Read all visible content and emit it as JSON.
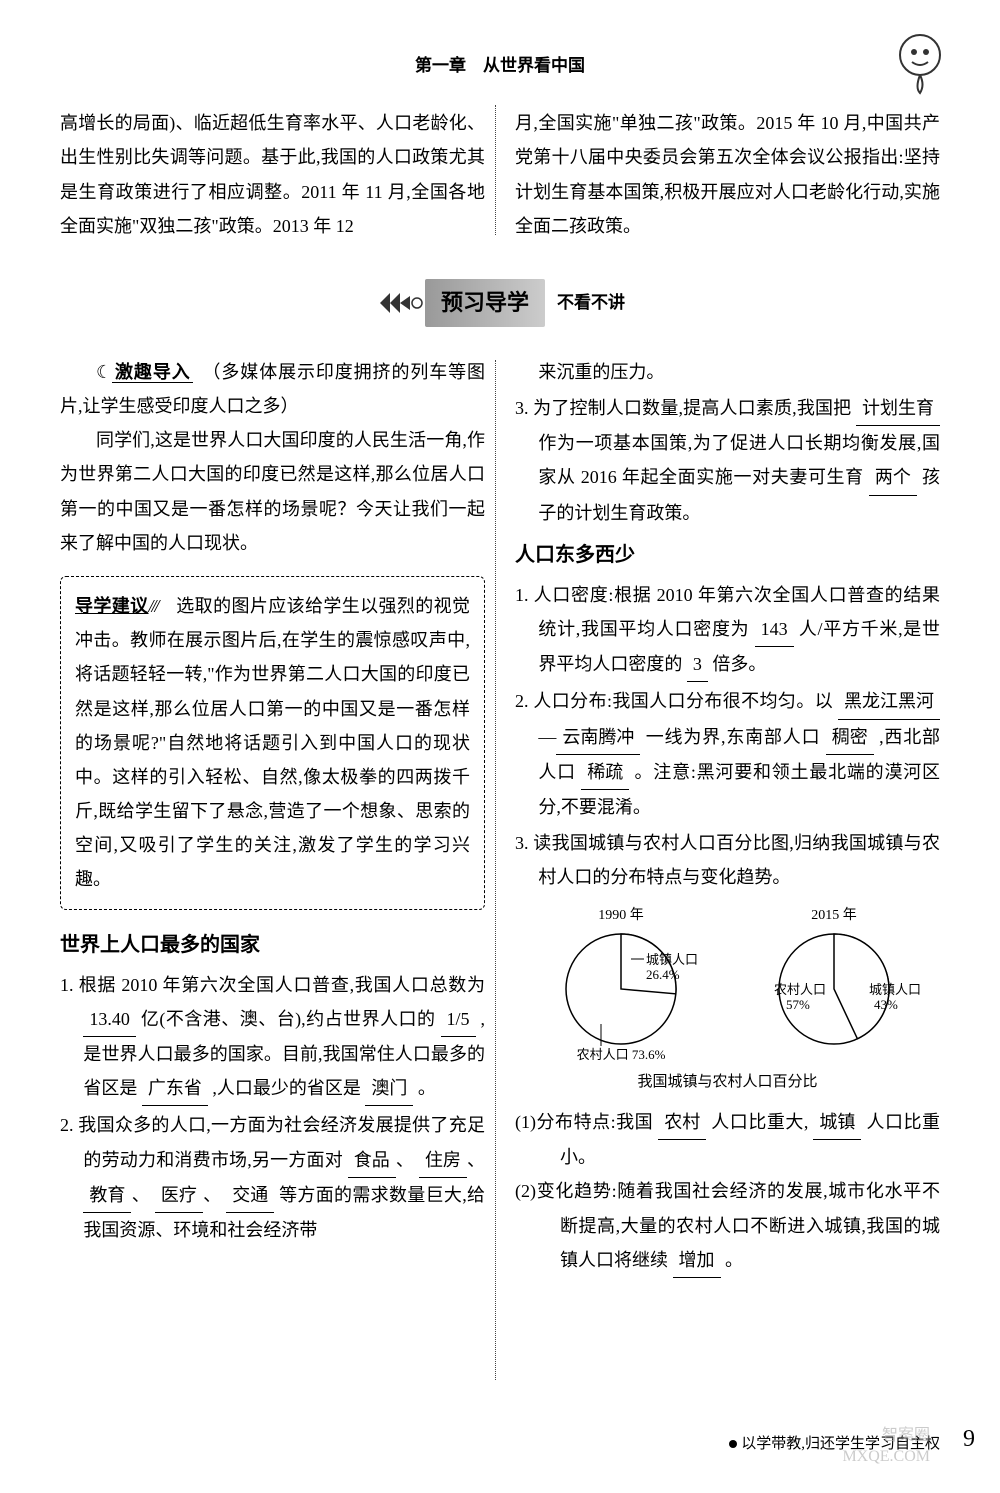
{
  "header": "第一章　从世界看中国",
  "intro_left": "高增长的局面)、临近超低生育率水平、人口老龄化、出生性别比失调等问题。基于此,我国的人口政策尤其是生育政策进行了相应调整。2011 年 11 月,全国各地全面实施\"双独二孩\"政策。2013 年 12",
  "intro_right": "月,全国实施\"单独二孩\"政策。2015 年 10 月,中国共产党第十八届中央委员会第五次全体会议公报指出:坚持计划生育基本国策,积极开展应对人口老龄化行动,实施全面二孩政策。",
  "banner": {
    "title": "预习导学",
    "sub": "不看不讲"
  },
  "left": {
    "jiqu_head": "激趣导入",
    "jiqu_note": "（多媒体展示印度拥挤的列车等图片,让学生感受印度人口之多）",
    "jiqu_p1": "同学们,这是世界人口大国印度的人民生活一角,作为世界第二人口大国的印度已然是这样,那么位居人口第一的中国又是一番怎样的场景呢？今天让我们一起来了解中国的人口现状。",
    "sug_head": "导学建议",
    "sug_body": "　选取的图片应该给学生以强烈的视觉冲击。教师在展示图片后,在学生的震惊感叹声中,将话题轻轻一转,\"作为世界第二人口大国的印度已然是这样,那么位居人口第一的中国又是一番怎样的场景呢?\"自然地将话题引入到中国人口的现状中。这样的引入轻松、自然,像太极拳的四两拨千斤,既给学生留下了悬念,营造了一个想象、思索的空间,又吸引了学生的关注,激发了学生的学习兴趣。",
    "sec1_title": "世界上人口最多的国家",
    "item1_pre": "1. 根据 2010 年第六次全国人口普查,我国人口总数为",
    "item1_b1": "13.40",
    "item1_mid1": "亿(不含港、澳、台),约占世界人口的",
    "item1_b2": "1/5",
    "item1_mid2": ",是世界人口最多的国家。目前,我国常住人口最多的省区是",
    "item1_b3": "广东省",
    "item1_mid3": ",人口最少的省区是",
    "item1_b4": "澳门",
    "item1_end": "。",
    "item2_pre": "2. 我国众多的人口,一方面为社会经济发展提供了充足的劳动力和消费市场,另一方面对",
    "item2_b1": "食品",
    "item2_c1": "、",
    "item2_b2": "住房",
    "item2_c2": "、",
    "item2_b3": "教育",
    "item2_c3": "、",
    "item2_b4": "医疗",
    "item2_c4": "、",
    "item2_b5": "交通",
    "item2_end": "等方面的需求数量巨大,给我国资源、环境和社会经济带"
  },
  "right": {
    "cont": "来沉重的压力。",
    "item3_pre": "3. 为了控制人口数量,提高人口素质,我国把",
    "item3_b1": "计划生育",
    "item3_mid1": "作为一项基本国策,为了促进人口长期均衡发展,国家从 2016 年起全面实施一对夫妻可生育",
    "item3_b2": "两个",
    "item3_end": "孩子的计划生育政策。",
    "sec2_title": "人口东多西少",
    "r1_pre": "1. 人口密度:根据 2010 年第六次全国人口普查的结果统计,我国平均人口密度为",
    "r1_b1": "143",
    "r1_mid": "人/平方千米,是世界平均人口密度的",
    "r1_b2": "3",
    "r1_end": "倍多。",
    "r2_pre": "2. 人口分布:我国人口分布很不均匀。以",
    "r2_b1": "黑龙江黑河",
    "r2_dash": "—",
    "r2_b2": "云南腾冲",
    "r2_mid1": "一线为界,东南部人口",
    "r2_b3": "稠密",
    "r2_mid2": ",西北部人口",
    "r2_b4": "稀疏",
    "r2_end": "。注意:黑河要和领土最北端的漠河区分,不要混淆。",
    "r3": "3. 读我国城镇与农村人口百分比图,归纳我国城镇与农村人口的分布特点与变化趋势。",
    "chart1990": {
      "year": "1990 年",
      "urban_label": "城镇人口",
      "urban_pct": "26.4%",
      "urban_value": 26.4,
      "rural_label": "农村人口 73.6%",
      "rural_value": 73.6,
      "urban_color": "#ffffff",
      "rural_color": "#ffffff",
      "stroke": "#000000"
    },
    "chart2015": {
      "year": "2015 年",
      "urban_label": "城镇人口",
      "urban_pct": "43%",
      "urban_value": 43,
      "rural_label": "农村人口",
      "rural_pct": "57%",
      "rural_value": 57,
      "urban_color": "#ffffff",
      "rural_color": "#ffffff",
      "stroke": "#000000"
    },
    "chart_caption": "我国城镇与农村人口百分比",
    "a1_pre": "(1)分布特点:我国",
    "a1_b1": "农村",
    "a1_mid": "人口比重大,",
    "a1_b2": "城镇",
    "a1_end": "人口比重小。",
    "a2_pre": "(2)变化趋势:随着我国社会经济的发展,城市化水平不断提高,大量的农村人口不断进入城镇,我国的城镇人口将继续",
    "a2_b1": "增加",
    "a2_end": "。"
  },
  "footer": "以学带教,归还学生学习自主权",
  "page": "9",
  "watermark1": "智案圈",
  "watermark2": "MXQE.COM"
}
